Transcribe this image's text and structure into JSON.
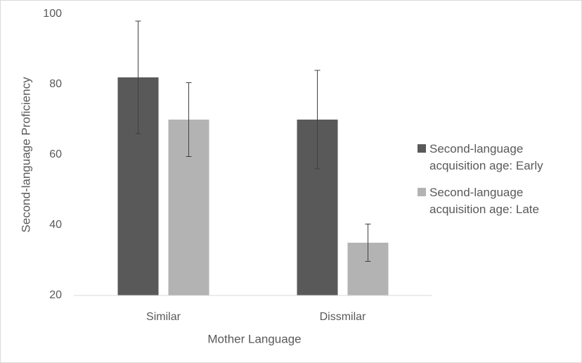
{
  "chart_data": {
    "type": "bar",
    "x_label": "Mother Language",
    "y_label": "Second-language Proficiency",
    "categories": [
      "Similar",
      "Dissmilar"
    ],
    "series": [
      {
        "name": "Second-language acquisition age: Early",
        "color": "#595959",
        "values": [
          82,
          70
        ],
        "errors": [
          16,
          14
        ]
      },
      {
        "name": "Second-language acquisition age: Late",
        "color": "#b3b3b3",
        "values": [
          70,
          35
        ],
        "errors": [
          10.5,
          5.3
        ]
      }
    ],
    "ylim": [
      20,
      100
    ],
    "yticks": [
      20,
      40,
      60,
      80,
      100
    ],
    "grid": false,
    "legend": "right"
  }
}
